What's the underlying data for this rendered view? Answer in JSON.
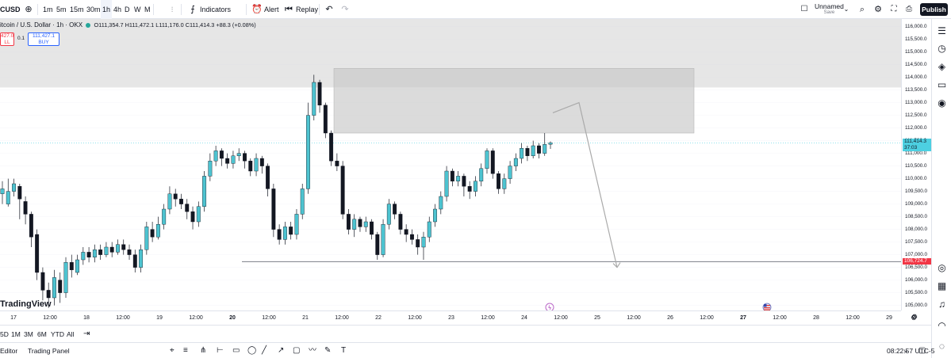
{
  "toolbar": {
    "symbol": "CUSD",
    "intervals": [
      "1m",
      "5m",
      "15m",
      "30m",
      "1h",
      "4h",
      "D",
      "W",
      "M"
    ],
    "active_interval": "1h",
    "indicators_label": "Indicators",
    "alert_label": "Alert",
    "replay_label": "Replay",
    "layout_name": "Unnamed",
    "layout_sub": "Save",
    "publish_label": "Publish"
  },
  "legend": {
    "title": "itcoin / U.S. Dollar · 1h · OKX",
    "ohlc": "O111,354.7 H111,472.1 L111,176.0 C111,414.3 +88.3 (+0.08%)",
    "sell_price": "427.0",
    "sell_label": "LL",
    "spread": "0.1",
    "buy_price": "111,427.1",
    "buy_label": "BUY"
  },
  "price_axis": {
    "labels": [
      "116,000.0",
      "115,500.0",
      "115,000.0",
      "114,500.0",
      "114,000.0",
      "113,500.0",
      "113,000.0",
      "112,500.0",
      "112,000.0",
      "111,500.0",
      "111,000.0",
      "110,500.0",
      "110,000.0",
      "109,500.0",
      "109,000.0",
      "108,500.0",
      "108,000.0",
      "107,500.0",
      "107,000.0",
      "106,500.0",
      "106,000.0",
      "105,500.0",
      "105,000.0"
    ],
    "current_price": "111,414.3",
    "countdown": "37:03",
    "line_price": "106,724.7",
    "current_color": "#4dd0e1",
    "line_color": "#f23645"
  },
  "time_axis": {
    "labels": [
      {
        "t": "17",
        "bold": false
      },
      {
        "t": "12:00",
        "bold": false
      },
      {
        "t": "18",
        "bold": false
      },
      {
        "t": "12:00",
        "bold": false
      },
      {
        "t": "19",
        "bold": false
      },
      {
        "t": "12:00",
        "bold": false
      },
      {
        "t": "20",
        "bold": true
      },
      {
        "t": "12:00",
        "bold": false
      },
      {
        "t": "21",
        "bold": false
      },
      {
        "t": "12:00",
        "bold": false
      },
      {
        "t": "22",
        "bold": false
      },
      {
        "t": "12:00",
        "bold": false
      },
      {
        "t": "23",
        "bold": false
      },
      {
        "t": "12:00",
        "bold": false
      },
      {
        "t": "24",
        "bold": false
      },
      {
        "t": "12:00",
        "bold": false
      },
      {
        "t": "25",
        "bold": false
      },
      {
        "t": "12:00",
        "bold": false
      },
      {
        "t": "26",
        "bold": false
      },
      {
        "t": "12:00",
        "bold": false
      },
      {
        "t": "27",
        "bold": true
      },
      {
        "t": "12:00",
        "bold": false
      },
      {
        "t": "28",
        "bold": false
      },
      {
        "t": "12:00",
        "bold": false
      },
      {
        "t": "29",
        "bold": false
      }
    ]
  },
  "range_bar": {
    "ranges": [
      "5D",
      "1M",
      "3M",
      "6M",
      "YTD",
      "All"
    ]
  },
  "bottom_bar": {
    "editor_label": "Editor",
    "panel_label": "Trading Panel",
    "clock": "08:22:57 UTC-5"
  },
  "watermark": "TradingView",
  "chart_data": {
    "type": "candlestick",
    "symbol": "Bitcoin / U.S. Dollar",
    "interval": "1h",
    "exchange": "OKX",
    "ylim": [
      104800,
      116300
    ],
    "last_close": 111414.3,
    "last_ohlc": {
      "open": 111354.7,
      "high": 111472.1,
      "low": 111176.0,
      "close": 111414.3
    },
    "horizontal_line": 106724.7,
    "supply_zone": {
      "top": 114350,
      "bottom": 111800
    },
    "upper_zone": {
      "top": 116300,
      "bottom": 113600
    },
    "projection_path": [
      [
        113000,
        112600
      ],
      [
        113100,
        113000
      ],
      [
        106500,
        106500
      ]
    ],
    "up_color": "#4dc3d0",
    "down_color": "#131722",
    "ticks": [
      [
        109400,
        109600,
        109900,
        109000
      ],
      [
        109000,
        109500,
        110000,
        108900
      ],
      [
        109500,
        109800,
        110000,
        109300
      ],
      [
        109700,
        109200,
        109800,
        108400
      ],
      [
        109100,
        108600,
        109300,
        108200
      ],
      [
        108600,
        107700,
        108700,
        107300
      ],
      [
        107800,
        106300,
        108000,
        106000
      ],
      [
        106300,
        105600,
        106500,
        105200
      ],
      [
        105600,
        105300,
        105900,
        104900
      ],
      [
        105300,
        106100,
        106400,
        105000
      ],
      [
        106000,
        105500,
        106300,
        105100
      ],
      [
        105500,
        106700,
        106900,
        105300
      ],
      [
        106700,
        106400,
        107000,
        106100
      ],
      [
        106300,
        106800,
        107000,
        106200
      ],
      [
        106800,
        107100,
        107300,
        106600
      ],
      [
        107100,
        106900,
        107300,
        106700
      ],
      [
        106900,
        107200,
        107400,
        106700
      ],
      [
        107200,
        107000,
        107400,
        106800
      ],
      [
        107000,
        107300,
        107500,
        106900
      ],
      [
        107300,
        107100,
        107500,
        106900
      ],
      [
        107100,
        107400,
        107600,
        107000
      ],
      [
        107400,
        107200,
        107600,
        107000
      ],
      [
        107200,
        107000,
        107400,
        106800
      ],
      [
        107000,
        106500,
        107200,
        106300
      ],
      [
        106500,
        107200,
        107400,
        106300
      ],
      [
        107200,
        108100,
        108300,
        107000
      ],
      [
        108000,
        107700,
        108300,
        107500
      ],
      [
        107700,
        108200,
        108500,
        107600
      ],
      [
        108200,
        108800,
        109000,
        108000
      ],
      [
        108800,
        109400,
        109700,
        108600
      ],
      [
        109400,
        109200,
        109600,
        108900
      ],
      [
        109200,
        109000,
        109400,
        108800
      ],
      [
        109000,
        108700,
        109200,
        108400
      ],
      [
        108700,
        108300,
        108900,
        108000
      ],
      [
        108300,
        108900,
        109100,
        108100
      ],
      [
        108900,
        110100,
        110300,
        108700
      ],
      [
        110100,
        110700,
        111000,
        109900
      ],
      [
        110700,
        111100,
        111300,
        110500
      ],
      [
        111100,
        110800,
        111200,
        110500
      ],
      [
        110800,
        110600,
        111000,
        110400
      ],
      [
        110600,
        110900,
        111100,
        110400
      ],
      [
        110900,
        111000,
        111200,
        110700
      ],
      [
        111000,
        110700,
        111100,
        110400
      ],
      [
        110700,
        110300,
        110800,
        110100
      ],
      [
        110300,
        110800,
        111000,
        110100
      ],
      [
        110800,
        110500,
        110900,
        110200
      ],
      [
        110500,
        109600,
        110600,
        109300
      ],
      [
        109600,
        108000,
        109800,
        107700
      ],
      [
        108000,
        107600,
        108200,
        107400
      ],
      [
        107600,
        108100,
        108300,
        107400
      ],
      [
        108100,
        107800,
        108300,
        107600
      ],
      [
        107800,
        108600,
        108800,
        107600
      ],
      [
        108600,
        109600,
        109800,
        108400
      ],
      [
        109600,
        112500,
        113000,
        109400
      ],
      [
        112500,
        113800,
        114100,
        112300
      ],
      [
        113800,
        112900,
        113900,
        112600
      ],
      [
        112900,
        111800,
        113000,
        111600
      ],
      [
        111800,
        110700,
        111900,
        110500
      ],
      [
        110700,
        110500,
        111000,
        110300
      ],
      [
        110500,
        108600,
        110700,
        108400
      ],
      [
        108600,
        108000,
        108800,
        107800
      ],
      [
        108000,
        108400,
        108600,
        107700
      ],
      [
        108400,
        108100,
        108500,
        107900
      ],
      [
        108100,
        108300,
        108500,
        107900
      ],
      [
        108300,
        107800,
        108400,
        107600
      ],
      [
        107800,
        107000,
        107900,
        106800
      ],
      [
        107000,
        108200,
        108400,
        106900
      ],
      [
        108200,
        109000,
        109200,
        108000
      ],
      [
        109000,
        108600,
        109100,
        108400
      ],
      [
        108600,
        108000,
        108700,
        107800
      ],
      [
        108000,
        107800,
        108200,
        107500
      ],
      [
        107800,
        107600,
        108000,
        107400
      ],
      [
        107600,
        107300,
        107800,
        107000
      ],
      [
        107300,
        107700,
        107900,
        106800
      ],
      [
        107700,
        108300,
        108500,
        107500
      ],
      [
        108300,
        108800,
        109000,
        108100
      ],
      [
        108800,
        109300,
        109500,
        108600
      ],
      [
        109300,
        110300,
        110500,
        109100
      ],
      [
        110300,
        109900,
        110400,
        109700
      ],
      [
        109900,
        110100,
        110300,
        109700
      ],
      [
        110100,
        109700,
        110200,
        109300
      ],
      [
        109700,
        109500,
        109900,
        109200
      ],
      [
        109500,
        109900,
        110100,
        109300
      ],
      [
        109900,
        110400,
        110600,
        109700
      ],
      [
        110400,
        111100,
        111200,
        110200
      ],
      [
        111100,
        110200,
        111200,
        110000
      ],
      [
        110200,
        109600,
        110300,
        109400
      ],
      [
        109600,
        110000,
        110200,
        109400
      ],
      [
        110000,
        110500,
        110700,
        109800
      ],
      [
        110500,
        110800,
        111000,
        110300
      ],
      [
        110800,
        111200,
        111400,
        110600
      ],
      [
        111200,
        110900,
        111300,
        110700
      ],
      [
        110900,
        111300,
        111500,
        110800
      ],
      [
        111300,
        111000,
        111400,
        110800
      ],
      [
        111000,
        111354.7,
        111800,
        110900
      ],
      [
        111354.7,
        111414.3,
        111472.1,
        111176
      ]
    ]
  }
}
